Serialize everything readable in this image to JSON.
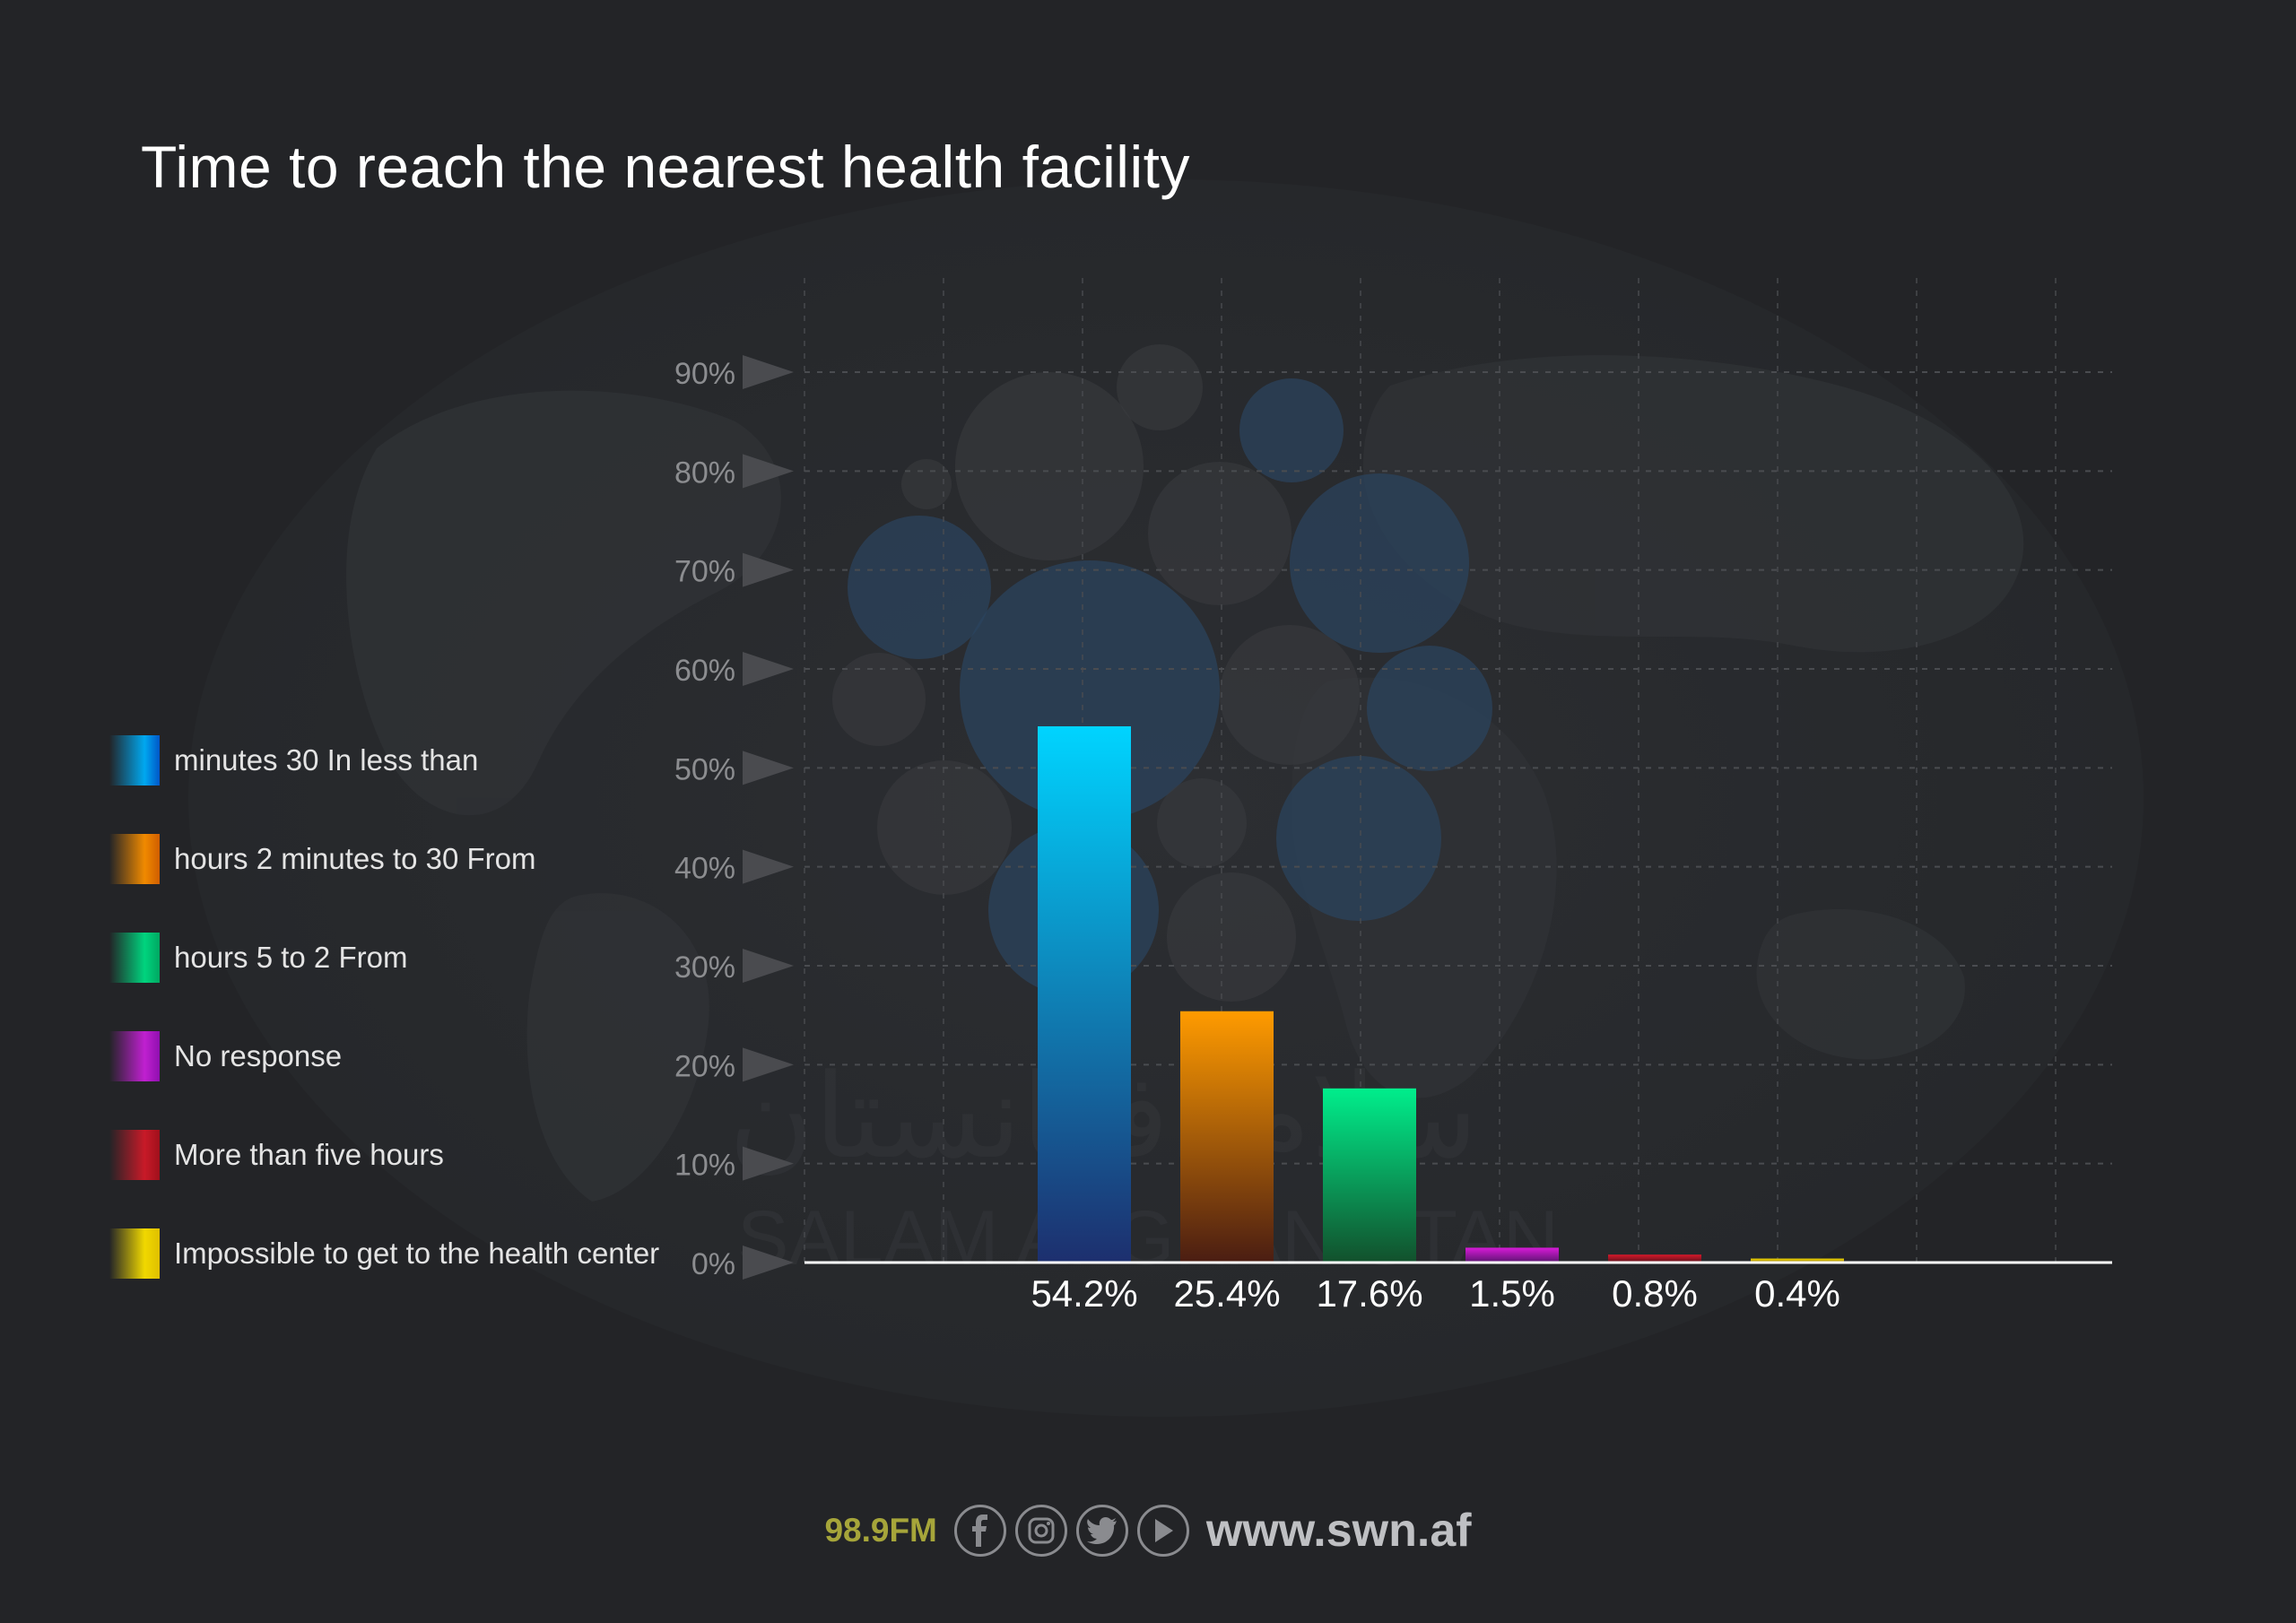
{
  "title": "Time to reach the nearest health facility",
  "colors": {
    "background": "#232427",
    "grid": "#4a4c50",
    "axis": "#ffffff",
    "tick": "#8c8d90"
  },
  "chart_data": {
    "type": "bar",
    "title": "Time to reach the nearest health facility",
    "categories": [
      "minutes 30 In less than",
      "hours 2 minutes to 30 From",
      "hours 5 to 2 From",
      "No response",
      "More than five hours",
      "Impossible to get to the health center"
    ],
    "values": [
      54.2,
      25.4,
      17.6,
      1.5,
      0.8,
      0.4
    ],
    "value_labels": [
      "54.2%",
      "25.4%",
      "17.6%",
      "1.5%",
      "0.8%",
      "0.4%"
    ],
    "colors": [
      [
        "#00d4ff",
        "#1d2f6e"
      ],
      [
        "#ff9b00",
        "#4a1d12"
      ],
      [
        "#00ee8c",
        "#12502c"
      ],
      [
        "#d81ad8",
        "#5a1470"
      ],
      [
        "#d8182a",
        "#5a121c"
      ],
      [
        "#f7de00",
        "#8a6c08"
      ]
    ],
    "ylim": [
      0,
      90
    ],
    "yticks": [
      0,
      10,
      20,
      30,
      40,
      50,
      60,
      70,
      80,
      90
    ],
    "ytick_labels": [
      "0%",
      "10%",
      "20%",
      "30%",
      "40%",
      "50%",
      "60%",
      "70%",
      "80%",
      "90%"
    ],
    "xlabel": "",
    "ylabel": "",
    "grid": true,
    "legend": "left"
  },
  "legend": [
    {
      "label": "minutes 30 In less than",
      "icon": "blue-swatch"
    },
    {
      "label": "hours 2 minutes to 30 From",
      "icon": "orange-swatch"
    },
    {
      "label": "hours 5 to 2 From",
      "icon": "green-swatch"
    },
    {
      "label": "No response",
      "icon": "purple-swatch"
    },
    {
      "label": "More than five hours",
      "icon": "red-swatch"
    },
    {
      "label": "Impossible to get to the health center",
      "icon": "yellow-swatch"
    }
  ],
  "watermark": {
    "arabic": "سلام افغانستان",
    "latin": "SALAM AFGHANISTAN"
  },
  "footer": {
    "fm": "98.9FM",
    "url": "www.swn.af",
    "icons": [
      "facebook-icon",
      "instagram-icon",
      "twitter-icon",
      "play-icon"
    ]
  }
}
